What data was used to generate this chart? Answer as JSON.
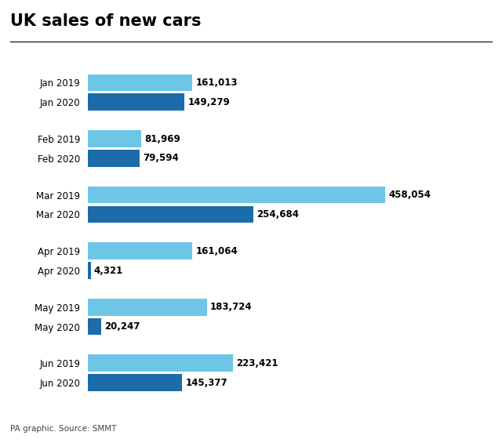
{
  "title": "UK sales of new cars",
  "source": "PA graphic. Source: SMMT",
  "color_2019": "#6EC6E6",
  "color_2020": "#1B6CA8",
  "bar_height": 0.28,
  "xlim": [
    0,
    530000
  ],
  "background_color": "#ffffff",
  "categories": [
    {
      "label": "Jan 2019",
      "value": 161013,
      "year": 2019
    },
    {
      "label": "Jan 2020",
      "value": 149279,
      "year": 2020
    },
    {
      "label": "Feb 2019",
      "value": 81969,
      "year": 2019
    },
    {
      "label": "Feb 2020",
      "value": 79594,
      "year": 2020
    },
    {
      "label": "Mar 2019",
      "value": 458054,
      "year": 2019
    },
    {
      "label": "Mar 2020",
      "value": 254684,
      "year": 2020
    },
    {
      "label": "Apr 2019",
      "value": 161064,
      "year": 2019
    },
    {
      "label": "Apr 2020",
      "value": 4321,
      "year": 2020
    },
    {
      "label": "May 2019",
      "value": 183724,
      "year": 2019
    },
    {
      "label": "May 2020",
      "value": 20247,
      "year": 2020
    },
    {
      "label": "Jun 2019",
      "value": 223421,
      "year": 2019
    },
    {
      "label": "Jun 2020",
      "value": 145377,
      "year": 2020
    }
  ],
  "group_starts": [
    0,
    2,
    4,
    6,
    8,
    10
  ],
  "value_labels": [
    "161,013",
    "149,279",
    "81,969",
    "79,594",
    "458,054",
    "254,684",
    "161,064",
    "4,321",
    "183,724",
    "20,247",
    "223,421",
    "145,377"
  ]
}
